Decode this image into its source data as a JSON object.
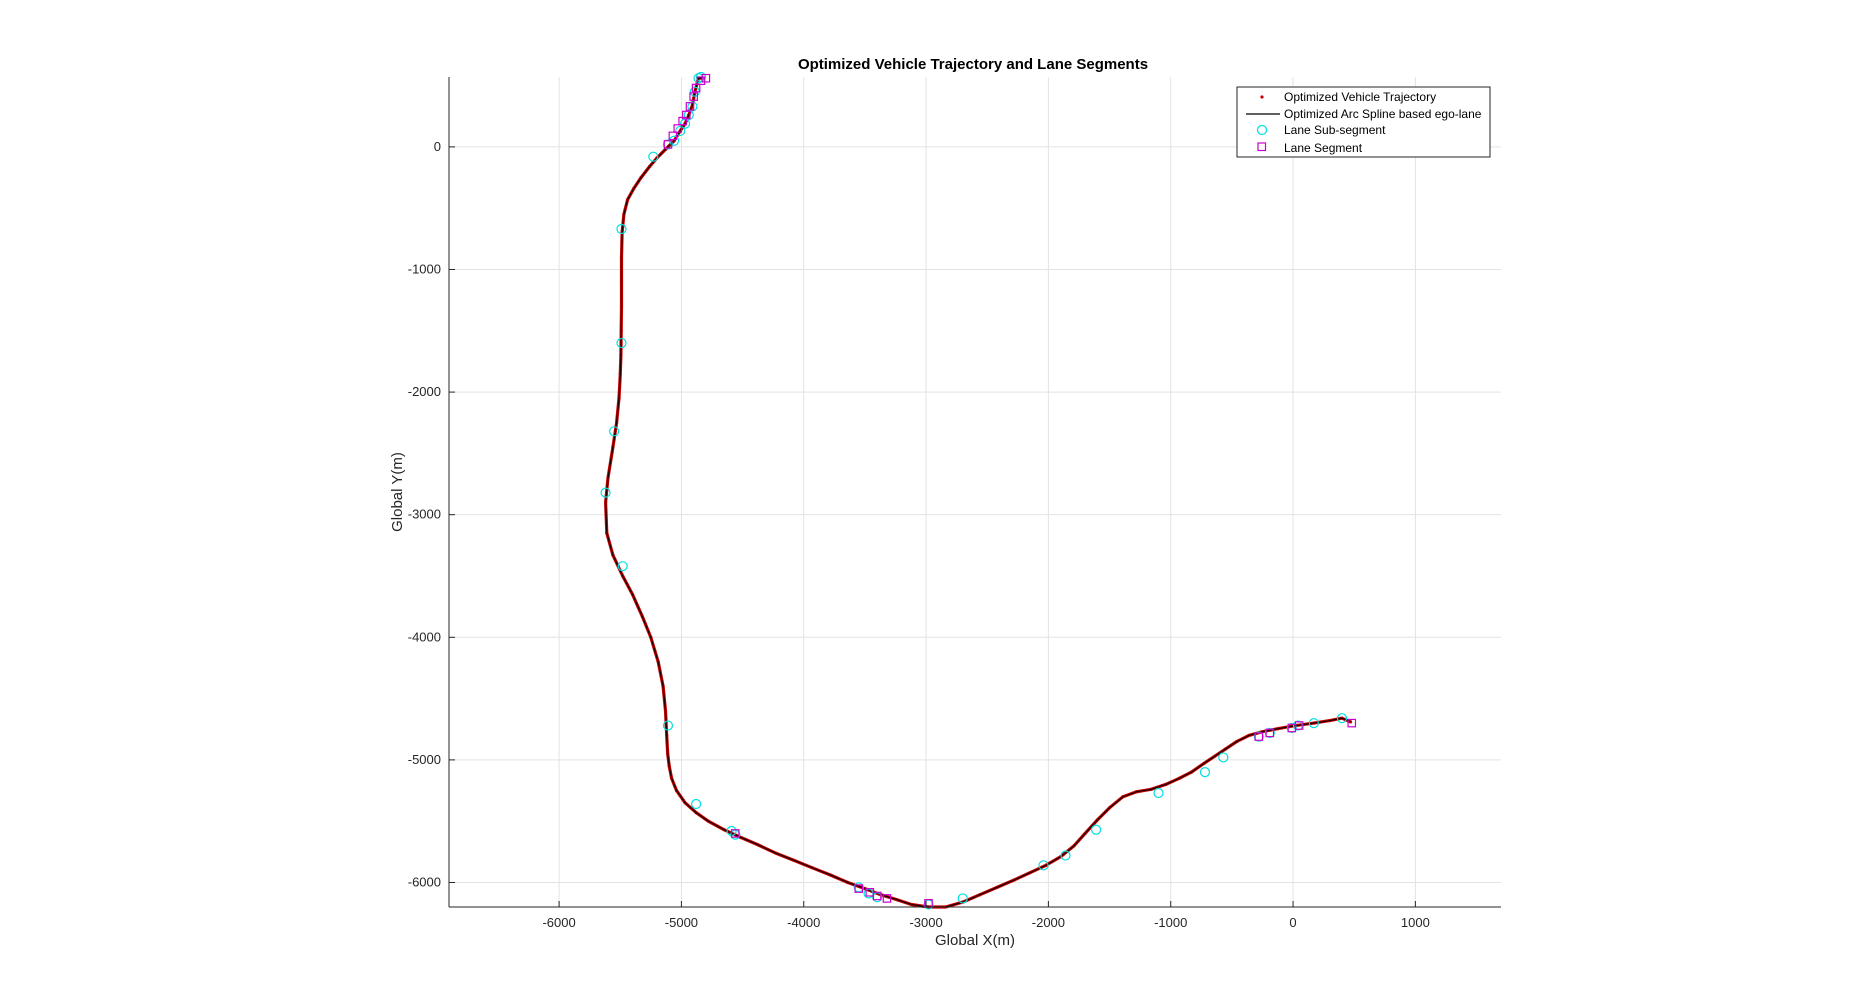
{
  "chart_data": {
    "type": "line",
    "title": "Optimized Vehicle Trajectory and Lane Segments",
    "xlabel": "Global X(m)",
    "ylabel": "Global Y(m)",
    "xlim": [
      -6900,
      1700
    ],
    "ylim": [
      -6200,
      570
    ],
    "xticks": [
      -6000,
      -5000,
      -4000,
      -3000,
      -2000,
      -1000,
      0,
      1000
    ],
    "yticks": [
      -6000,
      -5000,
      -4000,
      -3000,
      -2000,
      -1000,
      0
    ],
    "grid": true,
    "legend_position": "top-right",
    "series": [
      {
        "name": "Optimized Vehicle Trajectory",
        "style": "dot",
        "color": "#cc0000",
        "x": [
          -4820,
          -4860,
          -4890,
          -4910,
          -4940,
          -4970,
          -5010,
          -5060,
          -5130,
          -5200,
          -5260,
          -5330,
          -5390,
          -5440,
          -5470,
          -5485,
          -5490,
          -5490,
          -5490,
          -5492,
          -5495,
          -5500,
          -5510,
          -5530,
          -5560,
          -5600,
          -5620,
          -5610,
          -5560,
          -5480,
          -5400,
          -5320,
          -5250,
          -5190,
          -5150,
          -5130,
          -5120,
          -5112,
          -5100,
          -5080,
          -5040,
          -4970,
          -4880,
          -4780,
          -4650,
          -4520,
          -4380,
          -4230,
          -4080,
          -3930,
          -3780,
          -3640,
          -3500,
          -3370,
          -3240,
          -3120,
          -2980,
          -2840,
          -2700,
          -2560,
          -2420,
          -2280,
          -2150,
          -2020,
          -1900,
          -1790,
          -1700,
          -1600,
          -1500,
          -1390,
          -1280,
          -1160,
          -1040,
          -930,
          -830,
          -730,
          -640,
          -550,
          -460,
          -360,
          -250,
          -120,
          20,
          170,
          300,
          400,
          470
        ],
        "y": [
          560,
          560,
          450,
          340,
          260,
          190,
          130,
          50,
          -20,
          -90,
          -160,
          -250,
          -340,
          -430,
          -550,
          -700,
          -900,
          -1100,
          -1300,
          -1500,
          -1700,
          -1850,
          -2050,
          -2250,
          -2450,
          -2700,
          -2900,
          -3150,
          -3330,
          -3500,
          -3650,
          -3830,
          -4000,
          -4200,
          -4400,
          -4600,
          -4800,
          -4950,
          -5050,
          -5150,
          -5250,
          -5350,
          -5430,
          -5500,
          -5570,
          -5630,
          -5690,
          -5760,
          -5820,
          -5880,
          -5940,
          -6000,
          -6050,
          -6100,
          -6140,
          -6180,
          -6200,
          -6200,
          -6160,
          -6100,
          -6040,
          -5980,
          -5920,
          -5860,
          -5790,
          -5700,
          -5600,
          -5490,
          -5390,
          -5300,
          -5260,
          -5240,
          -5200,
          -5150,
          -5100,
          -5030,
          -4970,
          -4910,
          -4850,
          -4800,
          -4770,
          -4745,
          -4720,
          -4700,
          -4680,
          -4660,
          -4690
        ]
      },
      {
        "name": "Optimized Arc Spline based ego-lane",
        "style": "line",
        "color": "#000000",
        "x": [
          -4820,
          -4860,
          -4890,
          -4910,
          -4940,
          -4970,
          -5010,
          -5060,
          -5130,
          -5200,
          -5260,
          -5330,
          -5390,
          -5440,
          -5470,
          -5485,
          -5490,
          -5490,
          -5490,
          -5492,
          -5495,
          -5500,
          -5510,
          -5530,
          -5560,
          -5600,
          -5620,
          -5610,
          -5560,
          -5480,
          -5400,
          -5320,
          -5250,
          -5190,
          -5150,
          -5130,
          -5120,
          -5112,
          -5100,
          -5080,
          -5040,
          -4970,
          -4880,
          -4780,
          -4650,
          -4520,
          -4380,
          -4230,
          -4080,
          -3930,
          -3780,
          -3640,
          -3500,
          -3370,
          -3240,
          -3120,
          -2980,
          -2840,
          -2700,
          -2560,
          -2420,
          -2280,
          -2150,
          -2020,
          -1900,
          -1790,
          -1700,
          -1600,
          -1500,
          -1390,
          -1280,
          -1160,
          -1040,
          -930,
          -830,
          -730,
          -640,
          -550,
          -460,
          -360,
          -250,
          -120,
          20,
          170,
          300,
          400,
          470
        ],
        "y": [
          560,
          560,
          450,
          340,
          260,
          190,
          130,
          50,
          -20,
          -90,
          -160,
          -250,
          -340,
          -430,
          -550,
          -700,
          -900,
          -1100,
          -1300,
          -1500,
          -1700,
          -1850,
          -2050,
          -2250,
          -2450,
          -2700,
          -2900,
          -3150,
          -3330,
          -3500,
          -3650,
          -3830,
          -4000,
          -4200,
          -4400,
          -4600,
          -4800,
          -4950,
          -5050,
          -5150,
          -5250,
          -5350,
          -5430,
          -5500,
          -5570,
          -5630,
          -5690,
          -5760,
          -5820,
          -5880,
          -5940,
          -6000,
          -6050,
          -6100,
          -6140,
          -6180,
          -6200,
          -6200,
          -6160,
          -6100,
          -6040,
          -5980,
          -5920,
          -5860,
          -5790,
          -5700,
          -5600,
          -5490,
          -5390,
          -5300,
          -5260,
          -5240,
          -5200,
          -5150,
          -5100,
          -5030,
          -4970,
          -4910,
          -4850,
          -4800,
          -4770,
          -4745,
          -4720,
          -4700,
          -4680,
          -4660,
          -4690
        ]
      },
      {
        "name": "Lane Sub-segment",
        "style": "circle",
        "color": "#00e0e0",
        "x": [
          -4840,
          -4860,
          -4890,
          -4910,
          -4940,
          -4970,
          -5010,
          -5060,
          -5110,
          -5230,
          -5490,
          -5490,
          -5550,
          -5620,
          -5480,
          -5110,
          -4880,
          -4590,
          -4560,
          -3550,
          -3470,
          -3400,
          -2980,
          -2700,
          -2040,
          -1860,
          -1610,
          -1100,
          -720,
          -570,
          -280,
          -190,
          -10,
          40,
          170,
          400
        ],
        "y": [
          580,
          560,
          450,
          330,
          260,
          190,
          130,
          50,
          20,
          -80,
          -670,
          -1600,
          -2320,
          -2820,
          -3420,
          -4720,
          -5360,
          -5580,
          -5610,
          -6040,
          -6090,
          -6120,
          -6180,
          -6130,
          -5860,
          -5780,
          -5570,
          -5270,
          -5100,
          -4980,
          -4810,
          -4780,
          -4740,
          -4720,
          -4700,
          -4660
        ]
      },
      {
        "name": "Lane Segment",
        "style": "square",
        "color": "#cc00cc",
        "x": [
          -4800,
          -4840,
          -4880,
          -4900,
          -4930,
          -4960,
          -4990,
          -5030,
          -5070,
          -5110,
          -4560,
          -3550,
          -3460,
          -3400,
          -3320,
          -2980,
          -280,
          -190,
          -10,
          50,
          480
        ],
        "y": [
          560,
          540,
          480,
          410,
          330,
          260,
          210,
          150,
          90,
          20,
          -5600,
          -6050,
          -6080,
          -6110,
          -6130,
          -6170,
          -4810,
          -4780,
          -4740,
          -4720,
          -4700
        ]
      }
    ]
  }
}
